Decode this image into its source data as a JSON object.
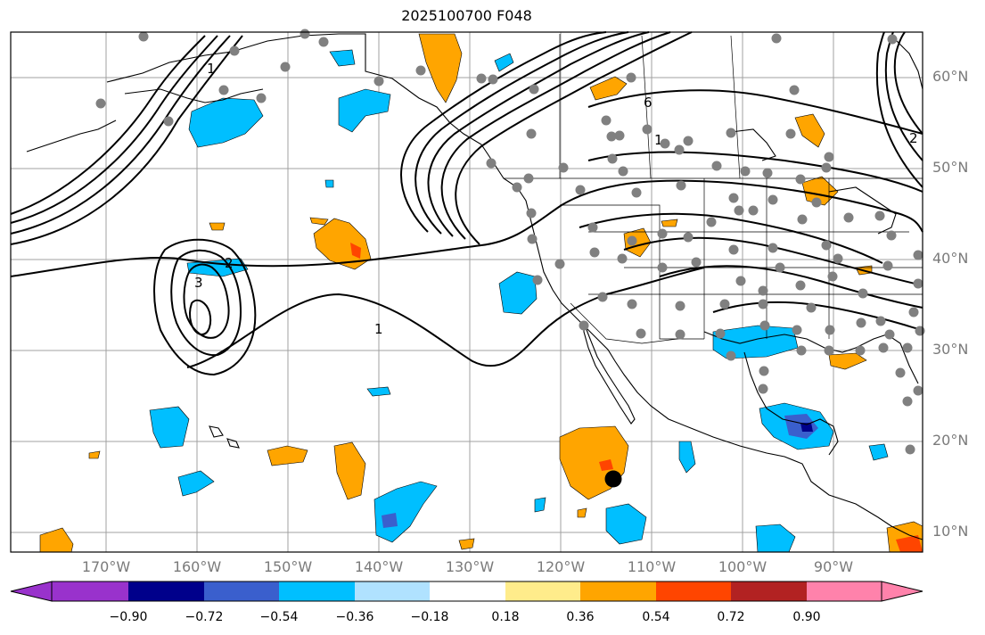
{
  "title": "2025100700 F048",
  "lat_labels": [
    "60°N",
    "50°N",
    "40°N",
    "30°N",
    "20°N",
    "10°N"
  ],
  "lon_labels": [
    "170°W",
    "160°W",
    "150°W",
    "140°W",
    "130°W",
    "120°W",
    "110°W",
    "100°W",
    "90°W"
  ],
  "colorbar": {
    "ticks": [
      "−0.90",
      "−0.72",
      "−0.54",
      "−0.36",
      "−0.18",
      "0.18",
      "0.36",
      "0.54",
      "0.72",
      "0.90"
    ],
    "colors": [
      "#9932cc",
      "#00008b",
      "#3a5fcd",
      "#00bfff",
      "#b0e2ff",
      "#ffffff",
      "#ffec8b",
      "#ffa500",
      "#ff4500",
      "#b22222",
      "#ff82ab"
    ]
  },
  "contour_labels": [
    "1",
    "2",
    "3",
    "6",
    "1",
    "1",
    "2"
  ],
  "colors": {
    "orange": "#ffa500",
    "red_orange": "#ff4500",
    "blue": "#00bfff",
    "dark_blue": "#00008b",
    "medium_blue": "#3a5fcd",
    "station_marker": "#808080",
    "grid": "#a0a0a0"
  }
}
